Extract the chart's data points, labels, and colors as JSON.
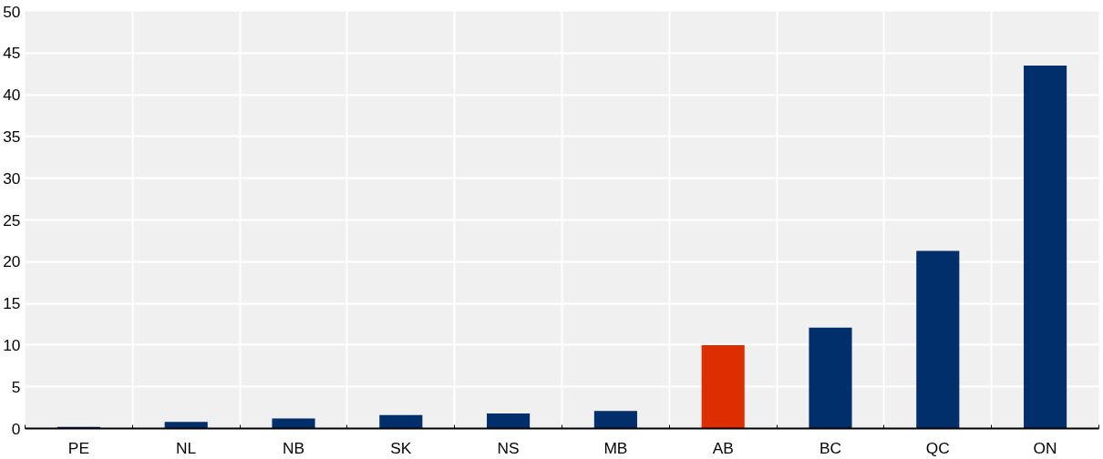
{
  "chart_data": {
    "type": "bar",
    "categories": [
      "PE",
      "NL",
      "NB",
      "SK",
      "NS",
      "MB",
      "AB",
      "BC",
      "QC",
      "ON"
    ],
    "values": [
      0.2,
      0.8,
      1.2,
      1.6,
      1.8,
      2.1,
      10.0,
      12.1,
      21.3,
      43.5
    ],
    "colors": [
      "#002f6c",
      "#002f6c",
      "#002f6c",
      "#002f6c",
      "#002f6c",
      "#002f6c",
      "#dc2e00",
      "#002f6c",
      "#002f6c",
      "#002f6c"
    ],
    "ylim": [
      0,
      50
    ],
    "yticks": [
      0,
      5,
      10,
      15,
      20,
      25,
      30,
      35,
      40,
      45,
      50
    ],
    "grid": true
  }
}
